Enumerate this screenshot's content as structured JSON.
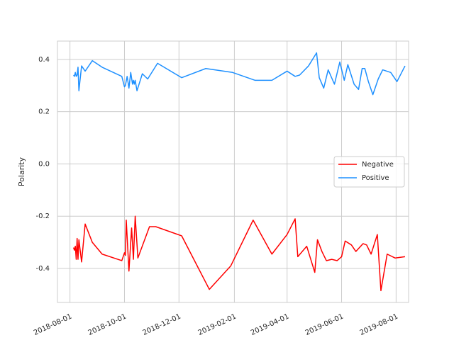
{
  "chart_data": {
    "type": "line",
    "ylabel": "Polarity",
    "xlabel": "",
    "xlim": [
      "2018-07-18",
      "2019-08-15"
    ],
    "ylim": [
      -0.53,
      0.47
    ],
    "x_ticks": [
      "2018-08-01",
      "2018-10-01",
      "2018-12-01",
      "2019-02-01",
      "2019-04-01",
      "2019-06-01",
      "2019-08-01"
    ],
    "y_ticks": [
      -0.4,
      -0.2,
      0.0,
      0.2,
      0.4
    ],
    "grid": true,
    "legend_position": "center-right",
    "series": [
      {
        "name": "Negative",
        "color": "#ff0000",
        "points": [
          [
            "2018-08-05",
            -0.32
          ],
          [
            "2018-08-06",
            -0.33
          ],
          [
            "2018-08-07",
            -0.315
          ],
          [
            "2018-08-08",
            -0.365
          ],
          [
            "2018-08-09",
            -0.285
          ],
          [
            "2018-08-10",
            -0.365
          ],
          [
            "2018-08-11",
            -0.29
          ],
          [
            "2018-08-14",
            -0.375
          ],
          [
            "2018-08-18",
            -0.23
          ],
          [
            "2018-08-26",
            -0.3
          ],
          [
            "2018-09-06",
            -0.345
          ],
          [
            "2018-09-28",
            -0.37
          ],
          [
            "2018-10-01",
            -0.34
          ],
          [
            "2018-10-02",
            -0.35
          ],
          [
            "2018-10-03",
            -0.215
          ],
          [
            "2018-10-06",
            -0.41
          ],
          [
            "2018-10-09",
            -0.245
          ],
          [
            "2018-10-11",
            -0.365
          ],
          [
            "2018-10-13",
            -0.2
          ],
          [
            "2018-10-16",
            -0.36
          ],
          [
            "2018-10-29",
            -0.24
          ],
          [
            "2018-11-05",
            -0.24
          ],
          [
            "2018-12-04",
            -0.275
          ],
          [
            "2019-01-04",
            -0.48
          ],
          [
            "2019-01-28",
            -0.39
          ],
          [
            "2019-02-22",
            -0.215
          ],
          [
            "2019-03-15",
            -0.345
          ],
          [
            "2019-04-01",
            -0.27
          ],
          [
            "2019-04-10",
            -0.21
          ],
          [
            "2019-04-13",
            -0.355
          ],
          [
            "2019-04-23",
            -0.315
          ],
          [
            "2019-05-02",
            -0.415
          ],
          [
            "2019-05-05",
            -0.29
          ],
          [
            "2019-05-10",
            -0.335
          ],
          [
            "2019-05-15",
            -0.37
          ],
          [
            "2019-05-21",
            -0.365
          ],
          [
            "2019-05-27",
            -0.37
          ],
          [
            "2019-06-01",
            -0.355
          ],
          [
            "2019-06-05",
            -0.295
          ],
          [
            "2019-06-12",
            -0.31
          ],
          [
            "2019-06-17",
            -0.335
          ],
          [
            "2019-06-25",
            -0.305
          ],
          [
            "2019-06-29",
            -0.31
          ],
          [
            "2019-07-04",
            -0.345
          ],
          [
            "2019-07-11",
            -0.27
          ],
          [
            "2019-07-15",
            -0.485
          ],
          [
            "2019-07-22",
            -0.345
          ],
          [
            "2019-07-31",
            -0.36
          ],
          [
            "2019-08-11",
            -0.355
          ]
        ]
      },
      {
        "name": "Positive",
        "color": "#1e90ff",
        "points": [
          [
            "2018-08-05",
            0.34
          ],
          [
            "2018-08-06",
            0.335
          ],
          [
            "2018-08-07",
            0.35
          ],
          [
            "2018-08-08",
            0.335
          ],
          [
            "2018-08-09",
            0.34
          ],
          [
            "2018-08-10",
            0.37
          ],
          [
            "2018-08-11",
            0.28
          ],
          [
            "2018-08-14",
            0.375
          ],
          [
            "2018-08-18",
            0.355
          ],
          [
            "2018-08-26",
            0.395
          ],
          [
            "2018-09-06",
            0.37
          ],
          [
            "2018-09-28",
            0.335
          ],
          [
            "2018-10-01",
            0.295
          ],
          [
            "2018-10-02",
            0.3
          ],
          [
            "2018-10-04",
            0.335
          ],
          [
            "2018-10-06",
            0.29
          ],
          [
            "2018-10-08",
            0.35
          ],
          [
            "2018-10-10",
            0.305
          ],
          [
            "2018-10-11",
            0.32
          ],
          [
            "2018-10-12",
            0.305
          ],
          [
            "2018-10-13",
            0.32
          ],
          [
            "2018-10-15",
            0.28
          ],
          [
            "2018-10-21",
            0.345
          ],
          [
            "2018-10-27",
            0.325
          ],
          [
            "2018-11-07",
            0.385
          ],
          [
            "2018-12-04",
            0.33
          ],
          [
            "2018-12-31",
            0.365
          ],
          [
            "2019-01-30",
            0.35
          ],
          [
            "2019-02-24",
            0.32
          ],
          [
            "2019-03-15",
            0.32
          ],
          [
            "2019-04-01",
            0.355
          ],
          [
            "2019-04-10",
            0.335
          ],
          [
            "2019-04-15",
            0.34
          ],
          [
            "2019-04-25",
            0.375
          ],
          [
            "2019-05-04",
            0.425
          ],
          [
            "2019-05-07",
            0.33
          ],
          [
            "2019-05-12",
            0.29
          ],
          [
            "2019-05-17",
            0.36
          ],
          [
            "2019-05-24",
            0.305
          ],
          [
            "2019-05-30",
            0.39
          ],
          [
            "2019-06-04",
            0.32
          ],
          [
            "2019-06-08",
            0.38
          ],
          [
            "2019-06-15",
            0.305
          ],
          [
            "2019-06-20",
            0.285
          ],
          [
            "2019-06-24",
            0.365
          ],
          [
            "2019-06-27",
            0.365
          ],
          [
            "2019-07-01",
            0.315
          ],
          [
            "2019-07-06",
            0.265
          ],
          [
            "2019-07-12",
            0.325
          ],
          [
            "2019-07-17",
            0.36
          ],
          [
            "2019-07-26",
            0.35
          ],
          [
            "2019-08-02",
            0.315
          ],
          [
            "2019-08-11",
            0.375
          ]
        ]
      }
    ]
  }
}
